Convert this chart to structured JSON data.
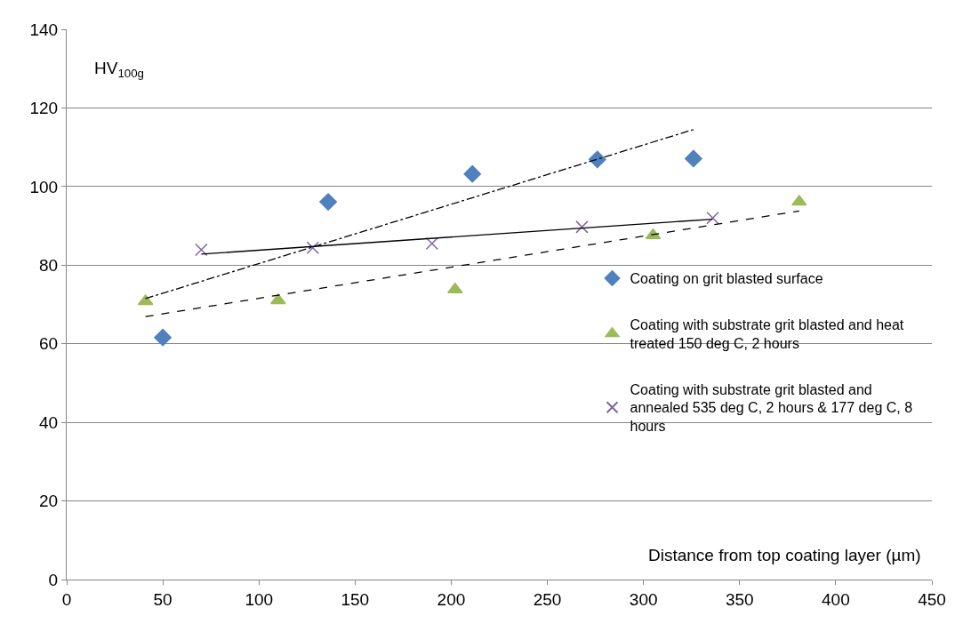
{
  "chart_data": {
    "type": "scatter",
    "xlabel": "Distance from top coating layer (µm)",
    "ylabel": "HV$_{100g}$",
    "xlim": [
      0,
      450
    ],
    "xticks": [
      0,
      50,
      100,
      150,
      200,
      250,
      300,
      350,
      400,
      450
    ],
    "ylim": [
      0,
      140
    ],
    "yticks": [
      0,
      20,
      40,
      60,
      80,
      100,
      120,
      140
    ],
    "grid": "y",
    "legend": "right",
    "series": [
      {
        "name": "Coating on grit blasted surface",
        "color": "#4f81bd",
        "marker": "diamond",
        "x": [
          50,
          136,
          211,
          276,
          326
        ],
        "values": [
          61.6,
          96.1,
          103.2,
          106.9,
          107.1
        ]
      },
      {
        "name": "Coating with substrate grit blasted and heat treated 150 deg C, 2 hours",
        "color": "#9bbb59",
        "marker": "triangle",
        "x": [
          41,
          110,
          202,
          305,
          381
        ],
        "values": [
          70.8,
          71,
          73.8,
          87.6,
          96.1
        ]
      },
      {
        "name": "Coating with substrate grit blasted and annealed 535 deg C, 2 hours & 177 deg C, 8 hours",
        "color": "#8064a2",
        "marker": "cross",
        "x": [
          70,
          128,
          190,
          268,
          336
        ],
        "values": [
          83.9,
          84.4,
          85.5,
          89.7,
          92
        ]
      },
      {
        "type": "line",
        "color": "#000000",
        "line_style": "dashdot",
        "x": [
          41,
          326
        ],
        "values": [
          71.5,
          114.5
        ]
      },
      {
        "type": "line",
        "color": "#000000",
        "line_style": "dashed",
        "x": [
          41,
          381
        ],
        "values": [
          66.9,
          93.8
        ]
      },
      {
        "type": "line",
        "color": "#000000",
        "line_style": "solid",
        "x": [
          70,
          336
        ],
        "values": [
          82.8,
          91.7
        ]
      }
    ]
  }
}
